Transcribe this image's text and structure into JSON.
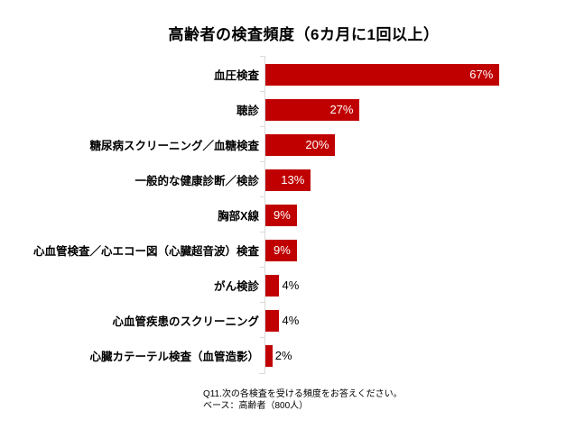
{
  "chart_data": {
    "type": "bar",
    "orientation": "horizontal",
    "title": "高齢者の検査頻度（6カ月に1回以上）",
    "categories": [
      "血圧検査",
      "聴診",
      "糖尿病スクリーニング／血糖検査",
      "一般的な健康診断／検診",
      "胸部X線",
      "心血管検査／心エコー図（心臓超音波）検査",
      "がん検診",
      "心血管疾患のスクリーニング",
      "心臓カテーテル検査（血管造影）"
    ],
    "values": [
      67,
      27,
      20,
      13,
      9,
      9,
      4,
      4,
      2
    ],
    "value_labels": [
      "67%",
      "27%",
      "20%",
      "13%",
      "9%",
      "9%",
      "4%",
      "4%",
      "2%"
    ],
    "xlabel": "",
    "ylabel": "",
    "xlim": [
      0,
      86
    ],
    "grid": false,
    "legend": "none",
    "bar_color": "#C00000",
    "axis_color": "#D9D9D9",
    "inside_label_color": "#FFFFFF",
    "outside_label_color": "#000000",
    "inside_label_threshold": 9
  },
  "footer": {
    "question": "Q11.次の各検査を受ける頻度をお答えください。",
    "base": "ベース：高齢者（800人）"
  }
}
